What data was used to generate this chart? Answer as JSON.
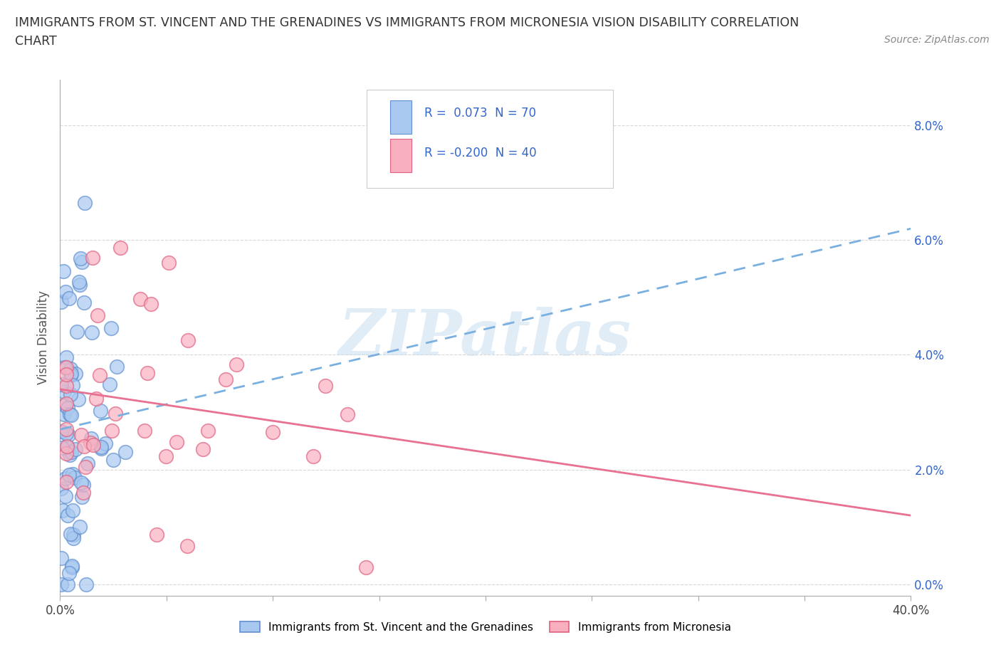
{
  "title_line1": "IMMIGRANTS FROM ST. VINCENT AND THE GRENADINES VS IMMIGRANTS FROM MICRONESIA VISION DISABILITY CORRELATION",
  "title_line2": "CHART",
  "source": "Source: ZipAtlas.com",
  "ylabel": "Vision Disability",
  "xlim": [
    0.0,
    0.4
  ],
  "ylim": [
    -0.002,
    0.088
  ],
  "yticks": [
    0.0,
    0.02,
    0.04,
    0.06,
    0.08
  ],
  "ytick_labels": [
    "0.0%",
    "2.0%",
    "4.0%",
    "6.0%",
    "8.0%"
  ],
  "xtick_positions": [
    0.0,
    0.05,
    0.1,
    0.15,
    0.2,
    0.25,
    0.3,
    0.35,
    0.4
  ],
  "series1_color": "#a8c8f0",
  "series2_color": "#f8b0c0",
  "series1_edge": "#6090d0",
  "series2_edge": "#e06080",
  "series1_label": "Immigrants from St. Vincent and the Grenadines",
  "series2_label": "Immigrants from Micronesia",
  "series1_R": 0.073,
  "series1_N": 70,
  "series2_R": -0.2,
  "series2_N": 40,
  "trend1_color": "#7ab0e0",
  "trend2_color": "#e87090",
  "trend1_start_y": 0.027,
  "trend1_end_y": 0.062,
  "trend2_start_y": 0.034,
  "trend2_end_y": 0.012,
  "watermark_text": "ZIPatlas",
  "background_color": "#ffffff",
  "grid_color": "#d8d8d8",
  "title_color": "#333333",
  "legend_R_color": "#3366cc"
}
